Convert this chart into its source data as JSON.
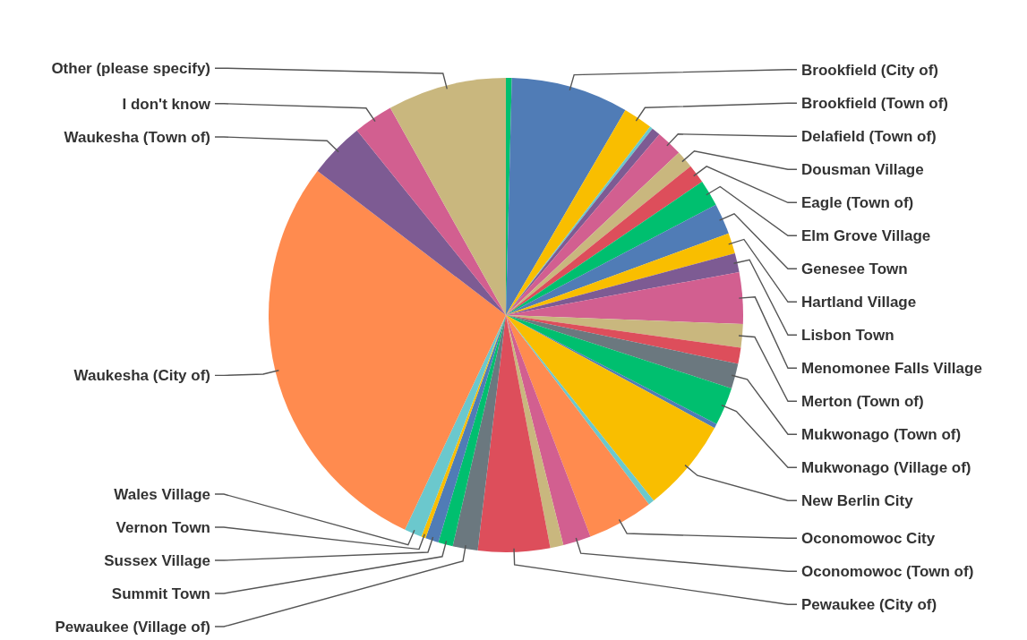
{
  "chart_data": {
    "type": "pie",
    "categories": [
      null,
      "Brookfield (City of)",
      "Brookfield (Town of)",
      null,
      null,
      "Delafield (Town of)",
      "Dousman Village",
      "Eagle (Town of)",
      "Elm Grove Village",
      "Genesee Town",
      "Hartland Village",
      "Lisbon Town",
      "Menomonee Falls Village",
      "Merton (Town of)",
      null,
      "Mukwonago (Town of)",
      "Mukwonago (Village of)",
      null,
      "New Berlin City",
      null,
      "Oconomowoc City",
      "Oconomowoc (Town of)",
      null,
      "Pewaukee (City of)",
      "Pewaukee (Village of)",
      "Summit Town",
      "Sussex Village",
      "Vernon Town",
      "Wales Village",
      "Waukesha (City of)",
      "Waukesha (Town of)",
      "I don't know",
      "Other (please specify)"
    ],
    "values": [
      0.4,
      8.0,
      2.0,
      0.2,
      0.6,
      1.8,
      1.2,
      1.3,
      1.8,
      2.1,
      1.4,
      1.3,
      3.5,
      1.6,
      1.1,
      1.7,
      2.6,
      0.3,
      6.4,
      0.4,
      4.5,
      1.9,
      0.9,
      4.9,
      1.7,
      1.0,
      0.9,
      0.3,
      1.2,
      28.4,
      3.8,
      2.7,
      8.1
    ],
    "colors": [
      "#00bf6f",
      "#507cb6",
      "#f9be00",
      "#6bc8cd",
      "#7d5b93",
      "#d25f90",
      "#c9b77e",
      "#dd4e5b",
      "#00bf6f",
      "#507cb6",
      "#f9be00",
      "#7d5b93",
      "#d25f90",
      "#c9b77e",
      "#dd4e5b",
      "#6b787f",
      "#00bf6f",
      "#507cb6",
      "#f9be00",
      "#6bc8cd",
      "#ff8b4f",
      "#d25f90",
      "#c9b77e",
      "#dd4e5b",
      "#6b787f",
      "#00bf6f",
      "#507cb6",
      "#f9be00",
      "#6bc8cd",
      "#ff8b4f",
      "#7d5b93",
      "#d25f90",
      "#c9b77e"
    ]
  }
}
